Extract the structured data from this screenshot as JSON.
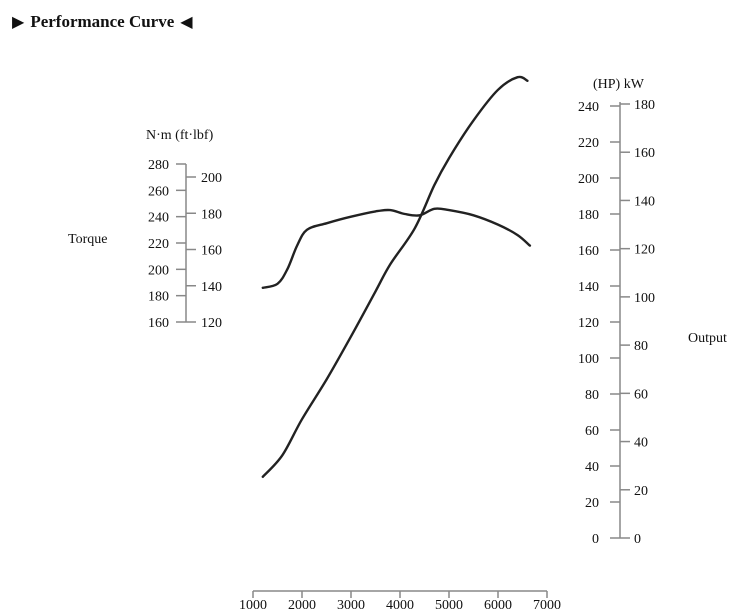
{
  "page_title": {
    "left_marker": "▶",
    "text": "Performance Curve",
    "right_marker": "◀"
  },
  "chart_data": {
    "type": "line",
    "x_ticks": [
      1000,
      2000,
      3000,
      4000,
      5000,
      6000,
      7000
    ],
    "torque_label": "Torque",
    "torque_units_label": "N·m (ft·lbf)",
    "torque_nm_ticks": [
      160,
      180,
      200,
      220,
      240,
      260,
      280
    ],
    "torque_ftlbf_ticks": [
      120,
      140,
      160,
      180,
      200
    ],
    "output_label": "Output",
    "output_units_label": "(HP) kW",
    "output_hp_ticks": [
      0,
      20,
      40,
      60,
      80,
      100,
      120,
      140,
      160,
      180,
      200,
      220,
      240
    ],
    "output_kw_ticks": [
      0,
      20,
      40,
      60,
      80,
      100,
      120,
      140,
      160,
      180
    ],
    "series": [
      {
        "points": [
          [
            1200,
            186
          ],
          [
            1500,
            189
          ],
          [
            1700,
            200
          ],
          [
            1900,
            218
          ],
          [
            2100,
            230
          ],
          [
            2500,
            235
          ],
          [
            3000,
            240
          ],
          [
            3500,
            244
          ],
          [
            3800,
            245
          ],
          [
            4100,
            242
          ],
          [
            4400,
            241
          ],
          [
            4700,
            246
          ],
          [
            5000,
            245
          ],
          [
            5500,
            241
          ],
          [
            6000,
            234
          ],
          [
            6400,
            226
          ],
          [
            6650,
            218
          ]
        ]
      },
      {
        "points": [
          [
            1200,
            34
          ],
          [
            1600,
            46
          ],
          [
            2000,
            66
          ],
          [
            2500,
            88
          ],
          [
            3000,
            112
          ],
          [
            3500,
            137
          ],
          [
            3800,
            152
          ],
          [
            4300,
            172
          ],
          [
            4700,
            196
          ],
          [
            5000,
            211
          ],
          [
            5500,
            232
          ],
          [
            6000,
            249
          ],
          [
            6400,
            256
          ],
          [
            6600,
            254
          ]
        ]
      }
    ]
  }
}
